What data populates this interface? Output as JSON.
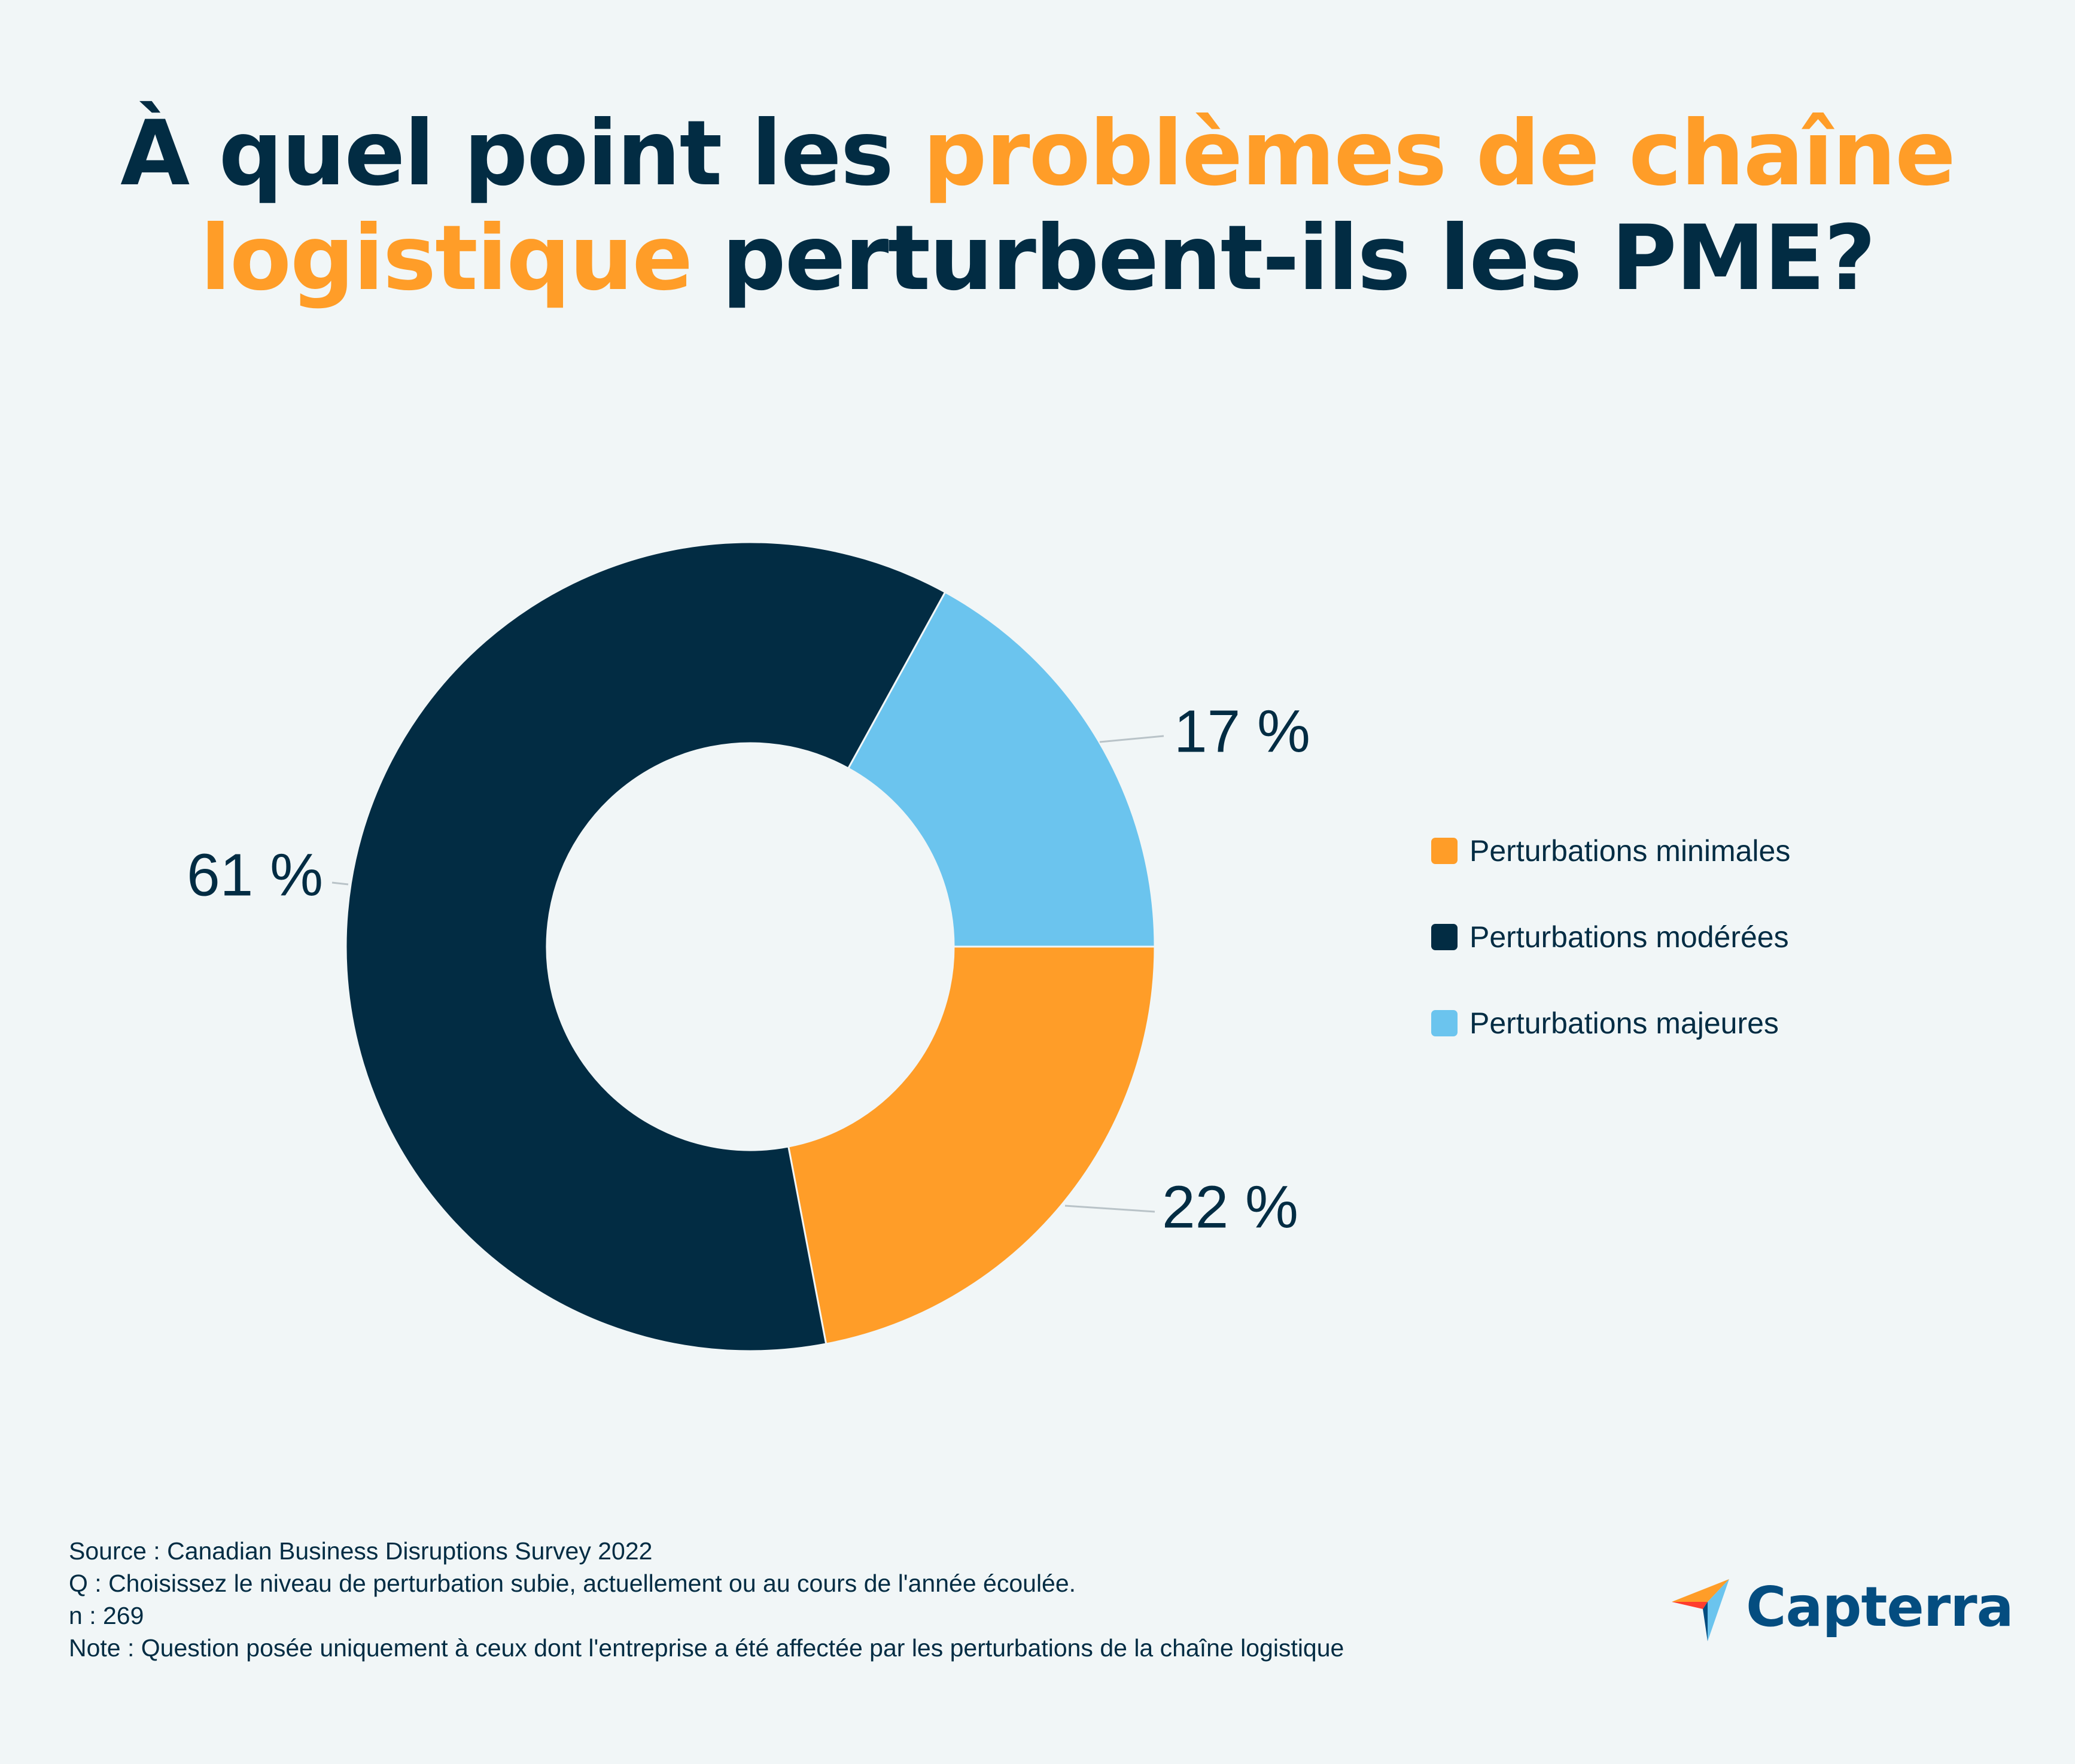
{
  "title": {
    "part1": "À quel point les ",
    "highlight": "problèmes de chaîne logistique",
    "part2": " perturbent-ils les PME?"
  },
  "chart_data": {
    "type": "pie",
    "variant": "donut",
    "slices": [
      {
        "name": "Perturbations minimales",
        "value": 22,
        "label": "22 %",
        "color": "#ff9d28"
      },
      {
        "name": "Perturbations modérées",
        "value": 61,
        "label": "61 %",
        "color": "#022c43"
      },
      {
        "name": "Perturbations majeures",
        "value": 17,
        "label": "17 %",
        "color": "#6bc4ee"
      }
    ],
    "legend_position": "right"
  },
  "footnotes": {
    "source": "Source : Canadian Business Disruptions Survey 2022",
    "question": "Q : Choisissez le niveau de perturbation subie, actuellement ou au cours de l'année écoulée.",
    "n": "n : 269",
    "note": "Note : Question posée uniquement à ceux dont l'entreprise a été affectée par les perturbations de la chaîne logistique"
  },
  "logo": {
    "text": "Capterra",
    "icon": "capterra-arrow-icon"
  }
}
